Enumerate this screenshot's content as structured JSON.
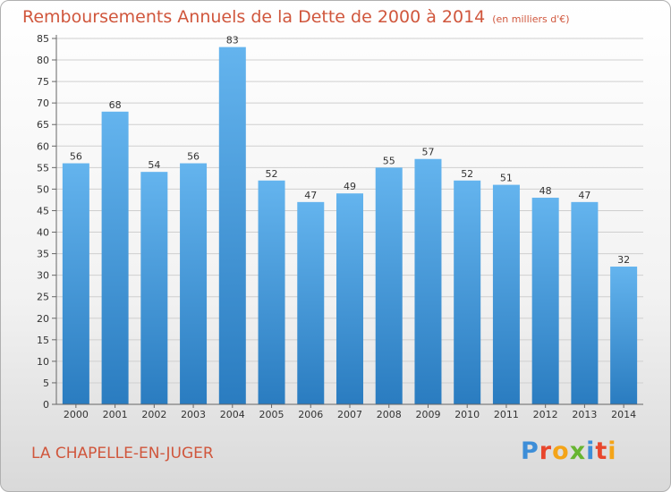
{
  "header": {
    "title": "Remboursements Annuels de la Dette de 2000 à 2014",
    "unit": "(en milliers d'€)"
  },
  "footer": {
    "commune": "LA CHAPELLE-EN-JUGER",
    "brand_letters": [
      "P",
      "r",
      "o",
      "x",
      "i",
      "t",
      "i"
    ],
    "brand_colors": [
      "#3d8ed8",
      "#e8462c",
      "#f4a418",
      "#67b531",
      "#3d8ed8",
      "#e8462c",
      "#f4a418"
    ]
  },
  "colors": {
    "title": "#d0563c",
    "bar_light": "#64b4ee",
    "bar_dark": "#2a7cc0",
    "grid": "#cfcfcf"
  },
  "chart_data": {
    "type": "bar",
    "title": "Remboursements Annuels de la Dette de 2000 à 2014",
    "ylabel": "en milliers d'€",
    "xlabel": "",
    "categories": [
      "2000",
      "2001",
      "2002",
      "2003",
      "2004",
      "2005",
      "2006",
      "2007",
      "2008",
      "2009",
      "2010",
      "2011",
      "2012",
      "2013",
      "2014"
    ],
    "values": [
      56,
      68,
      54,
      56,
      83,
      52,
      47,
      49,
      55,
      57,
      52,
      51,
      48,
      47,
      32
    ],
    "ylim": [
      0,
      85
    ],
    "yticks": [
      0,
      5,
      10,
      15,
      20,
      25,
      30,
      35,
      40,
      45,
      50,
      55,
      60,
      65,
      70,
      75,
      80,
      85
    ],
    "grid": true
  }
}
